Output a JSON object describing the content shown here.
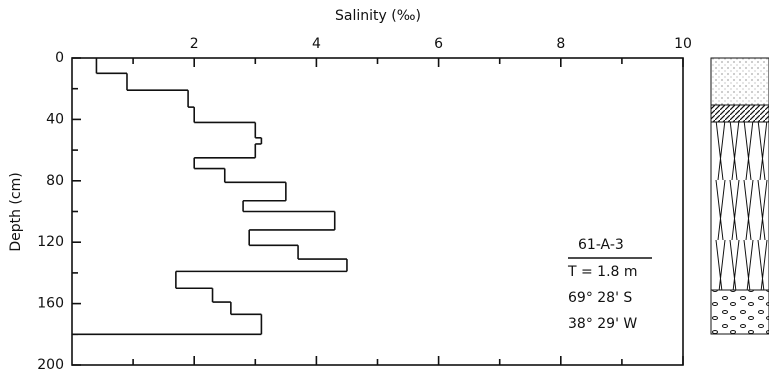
{
  "chart_data": {
    "type": "step",
    "title": "Salinity (‰)",
    "y_label": "Depth (cm)",
    "depth_edges": [
      0,
      10,
      21,
      32,
      42,
      52,
      56,
      65,
      72,
      81,
      93,
      100,
      112,
      122,
      131,
      139,
      150,
      159,
      167,
      180
    ],
    "values": [
      0.4,
      0.9,
      1.9,
      2.0,
      3.0,
      3.1,
      3.0,
      2.0,
      2.5,
      3.5,
      2.8,
      4.3,
      2.9,
      3.7,
      4.5,
      1.7,
      2.3,
      2.6,
      3.1
    ],
    "color": "#111111",
    "xlim": [
      0,
      10
    ],
    "xticks": [
      2,
      4,
      6,
      8,
      10
    ],
    "xticks_minor": [
      1,
      3,
      5,
      7,
      9
    ],
    "ylim": [
      0,
      200
    ],
    "yticks": [
      0,
      40,
      80,
      120,
      160,
      200
    ],
    "yticks_minor": [
      20,
      60,
      100,
      140,
      180
    ],
    "annotation": {
      "core": "61-A-3",
      "length": "T = 1.8 m",
      "latitude": "69° 28' S",
      "longitude": "38° 29' W"
    }
  }
}
